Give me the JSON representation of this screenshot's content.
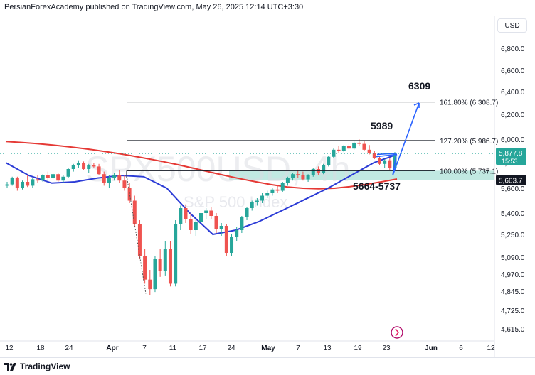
{
  "header": {
    "published_line": "PersianForexAcademy published on TradingView.com, May 26, 2025 12:14 UTC+3:30"
  },
  "currency_button": "USD",
  "footer": {
    "brand": "TradingView"
  },
  "watermark": {
    "symbol": "SPX500USD, 4h",
    "description": "S&P 500 Index"
  },
  "colors": {
    "up": "#26a69a",
    "down": "#ef5350",
    "ma_slow": "#e53935",
    "ma_fast": "#2b3bd6",
    "projection": "#2962ff",
    "zone": "#a7e0d6"
  },
  "chart_data": {
    "type": "candlestick",
    "y_ticks": [
      4615,
      4725,
      4845,
      4970,
      5090,
      5250,
      5400,
      5600,
      5800,
      6000,
      6200,
      6400,
      6600,
      6800
    ],
    "y_tick_labels": [
      "4,615.0",
      "4,725.0",
      "4,845.0",
      "4,970.0",
      "5,090.0",
      "5,250.0",
      "5,400.0",
      "5,600.0",
      "5,800.0",
      "6,000.0",
      "6,200.0",
      "6,400.0",
      "6,600.0",
      "6,800.0"
    ],
    "x_tick_labels": [
      "12",
      "18",
      "24",
      "Apr",
      "7",
      "11",
      "17",
      "24",
      "May",
      "7",
      "13",
      "19",
      "23",
      "Jun",
      "6",
      "12"
    ],
    "fib_levels": [
      {
        "label": "161.80% (6,308.7)",
        "value": 6308.7
      },
      {
        "label": "127.20% (5,988.7)",
        "value": 5988.7
      },
      {
        "label": "100.00% (5,737.1)",
        "value": 5737.1
      }
    ],
    "annotations": {
      "target_top": "6309",
      "target_mid": "5989",
      "support_zone": "5664-5737"
    },
    "support_zone": [
      5664,
      5737
    ],
    "current_price": {
      "value": 5877.8,
      "label": "5,877.8",
      "countdown": "15:53"
    },
    "zone_price": {
      "value": 5663.7,
      "label": "5,663.7"
    },
    "candles": [
      [
        5620,
        5650,
        5600,
        5630
      ],
      [
        5630,
        5690,
        5620,
        5680
      ],
      [
        5680,
        5690,
        5580,
        5600
      ],
      [
        5600,
        5660,
        5590,
        5650
      ],
      [
        5650,
        5700,
        5610,
        5620
      ],
      [
        5620,
        5680,
        5600,
        5670
      ],
      [
        5670,
        5700,
        5640,
        5660
      ],
      [
        5660,
        5710,
        5650,
        5700
      ],
      [
        5700,
        5730,
        5660,
        5680
      ],
      [
        5680,
        5720,
        5670,
        5710
      ],
      [
        5710,
        5720,
        5650,
        5660
      ],
      [
        5660,
        5700,
        5640,
        5690
      ],
      [
        5690,
        5760,
        5680,
        5750
      ],
      [
        5750,
        5790,
        5730,
        5780
      ],
      [
        5780,
        5820,
        5760,
        5800
      ],
      [
        5800,
        5810,
        5740,
        5750
      ],
      [
        5750,
        5790,
        5720,
        5780
      ],
      [
        5780,
        5800,
        5760,
        5770
      ],
      [
        5770,
        5790,
        5700,
        5710
      ],
      [
        5710,
        5730,
        5620,
        5640
      ],
      [
        5640,
        5700,
        5600,
        5680
      ],
      [
        5680,
        5720,
        5660,
        5700
      ],
      [
        5700,
        5740,
        5640,
        5660
      ],
      [
        5660,
        5700,
        5580,
        5600
      ],
      [
        5600,
        5640,
        5480,
        5500
      ],
      [
        5500,
        5540,
        5300,
        5320
      ],
      [
        5320,
        5350,
        5080,
        5100
      ],
      [
        5100,
        5150,
        4900,
        4930
      ],
      [
        4930,
        5000,
        4820,
        4860
      ],
      [
        4860,
        5100,
        4840,
        5080
      ],
      [
        5080,
        5150,
        4950,
        4990
      ],
      [
        4990,
        5200,
        4960,
        5150
      ],
      [
        5150,
        5200,
        4880,
        4900
      ],
      [
        4900,
        5350,
        4880,
        5320
      ],
      [
        5320,
        5460,
        5280,
        5440
      ],
      [
        5440,
        5470,
        5330,
        5360
      ],
      [
        5360,
        5400,
        5250,
        5280
      ],
      [
        5280,
        5360,
        5240,
        5340
      ],
      [
        5340,
        5420,
        5300,
        5400
      ],
      [
        5400,
        5440,
        5360,
        5420
      ],
      [
        5420,
        5450,
        5360,
        5380
      ],
      [
        5380,
        5400,
        5260,
        5290
      ],
      [
        5290,
        5330,
        5240,
        5310
      ],
      [
        5310,
        5320,
        5100,
        5120
      ],
      [
        5120,
        5250,
        5100,
        5230
      ],
      [
        5230,
        5300,
        5200,
        5280
      ],
      [
        5280,
        5380,
        5260,
        5370
      ],
      [
        5370,
        5450,
        5350,
        5440
      ],
      [
        5440,
        5500,
        5420,
        5490
      ],
      [
        5490,
        5520,
        5460,
        5500
      ],
      [
        5500,
        5560,
        5480,
        5540
      ],
      [
        5540,
        5580,
        5520,
        5560
      ],
      [
        5560,
        5600,
        5540,
        5590
      ],
      [
        5590,
        5620,
        5560,
        5580
      ],
      [
        5580,
        5650,
        5570,
        5640
      ],
      [
        5640,
        5690,
        5620,
        5680
      ],
      [
        5680,
        5720,
        5660,
        5710
      ],
      [
        5710,
        5740,
        5680,
        5700
      ],
      [
        5700,
        5730,
        5660,
        5670
      ],
      [
        5670,
        5710,
        5650,
        5700
      ],
      [
        5700,
        5760,
        5690,
        5750
      ],
      [
        5750,
        5770,
        5700,
        5720
      ],
      [
        5720,
        5790,
        5710,
        5780
      ],
      [
        5780,
        5860,
        5770,
        5850
      ],
      [
        5850,
        5920,
        5840,
        5910
      ],
      [
        5910,
        5940,
        5880,
        5900
      ],
      [
        5900,
        5950,
        5890,
        5940
      ],
      [
        5940,
        5960,
        5910,
        5920
      ],
      [
        5920,
        5980,
        5910,
        5970
      ],
      [
        5970,
        6000,
        5940,
        5960
      ],
      [
        5960,
        5990,
        5900,
        5910
      ],
      [
        5910,
        5950,
        5870,
        5880
      ],
      [
        5880,
        5900,
        5830,
        5840
      ],
      [
        5840,
        5860,
        5780,
        5790
      ],
      [
        5790,
        5830,
        5760,
        5820
      ],
      [
        5820,
        5840,
        5740,
        5760
      ],
      [
        5760,
        5890,
        5750,
        5878
      ]
    ],
    "ma_slow": [
      5980,
      5972,
      5962,
      5950,
      5936,
      5920,
      5902,
      5882,
      5860,
      5836,
      5810,
      5784,
      5756,
      5728,
      5700,
      5674,
      5650,
      5628,
      5610,
      5600,
      5596,
      5600,
      5612,
      5630,
      5650,
      5672
    ],
    "ma_fast": [
      5800,
      5700,
      5640,
      5650,
      5680,
      5700,
      5690,
      5600,
      5400,
      5250,
      5280,
      5340,
      5420,
      5510,
      5600,
      5700,
      5800,
      5870
    ]
  }
}
